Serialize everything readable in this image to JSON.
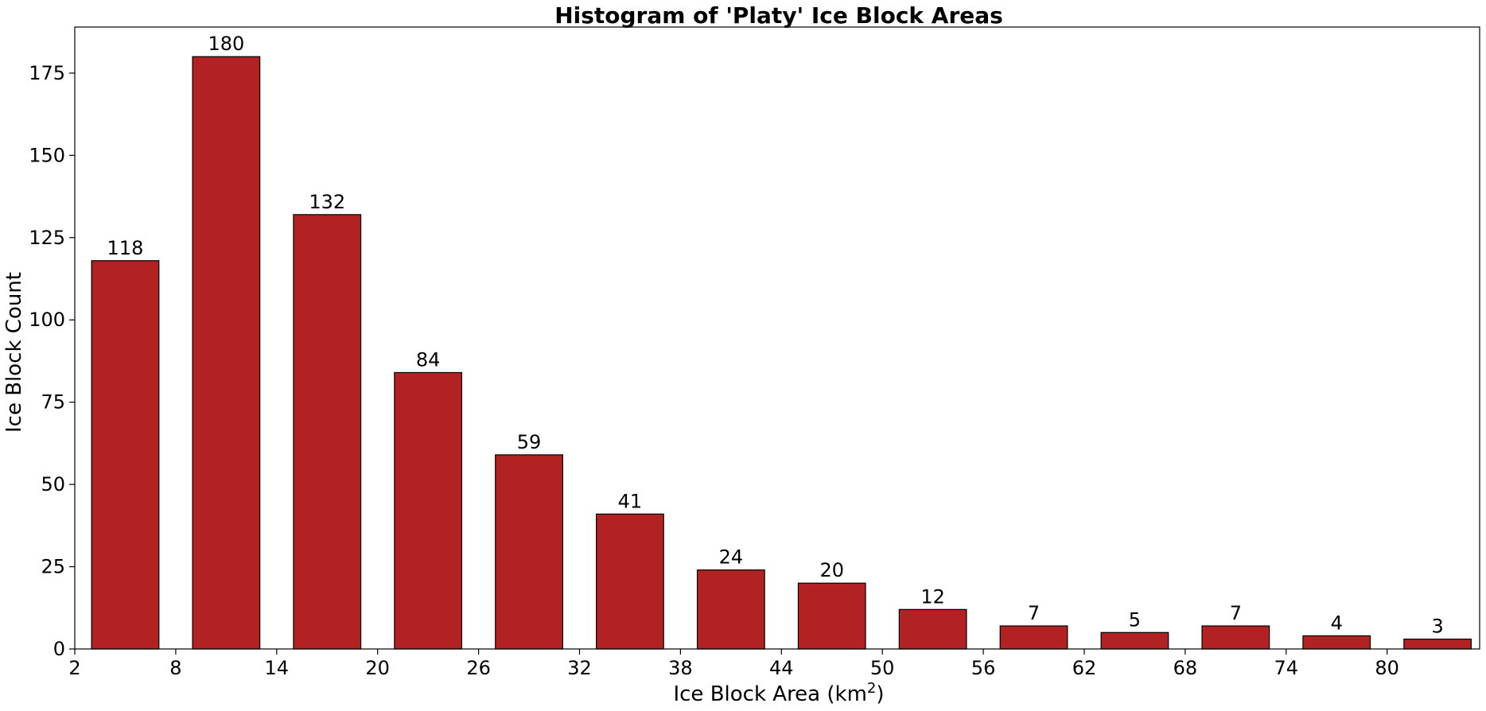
{
  "chart_data": {
    "type": "bar",
    "title": "Histogram of 'Platy' Ice Block Areas",
    "xlabel": "Ice Block Area (km",
    "xlabel_superscript": "2",
    "xlabel_suffix": ")",
    "ylabel": "Ice Block Count",
    "bar_color": "#B22222",
    "edge_color": "#000000",
    "xlim": [
      2,
      85.5
    ],
    "ylim": [
      0,
      189
    ],
    "x_ticks": [
      2,
      8,
      14,
      20,
      26,
      32,
      38,
      44,
      50,
      56,
      62,
      68,
      74,
      80
    ],
    "y_ticks": [
      0,
      25,
      50,
      75,
      100,
      125,
      150,
      175
    ],
    "bar_width": 4,
    "bars": [
      {
        "x": 5,
        "value": 118,
        "label": "118"
      },
      {
        "x": 11,
        "value": 180,
        "label": "180"
      },
      {
        "x": 17,
        "value": 132,
        "label": "132"
      },
      {
        "x": 23,
        "value": 84,
        "label": "84"
      },
      {
        "x": 29,
        "value": 59,
        "label": "59"
      },
      {
        "x": 35,
        "value": 41,
        "label": "41"
      },
      {
        "x": 41,
        "value": 24,
        "label": "24"
      },
      {
        "x": 47,
        "value": 20,
        "label": "20"
      },
      {
        "x": 53,
        "value": 12,
        "label": "12"
      },
      {
        "x": 59,
        "value": 7,
        "label": "7"
      },
      {
        "x": 65,
        "value": 5,
        "label": "5"
      },
      {
        "x": 71,
        "value": 7,
        "label": "7"
      },
      {
        "x": 77,
        "value": 4,
        "label": "4"
      },
      {
        "x": 83,
        "value": 3,
        "label": "3"
      }
    ],
    "grid": false,
    "legend": "none"
  }
}
